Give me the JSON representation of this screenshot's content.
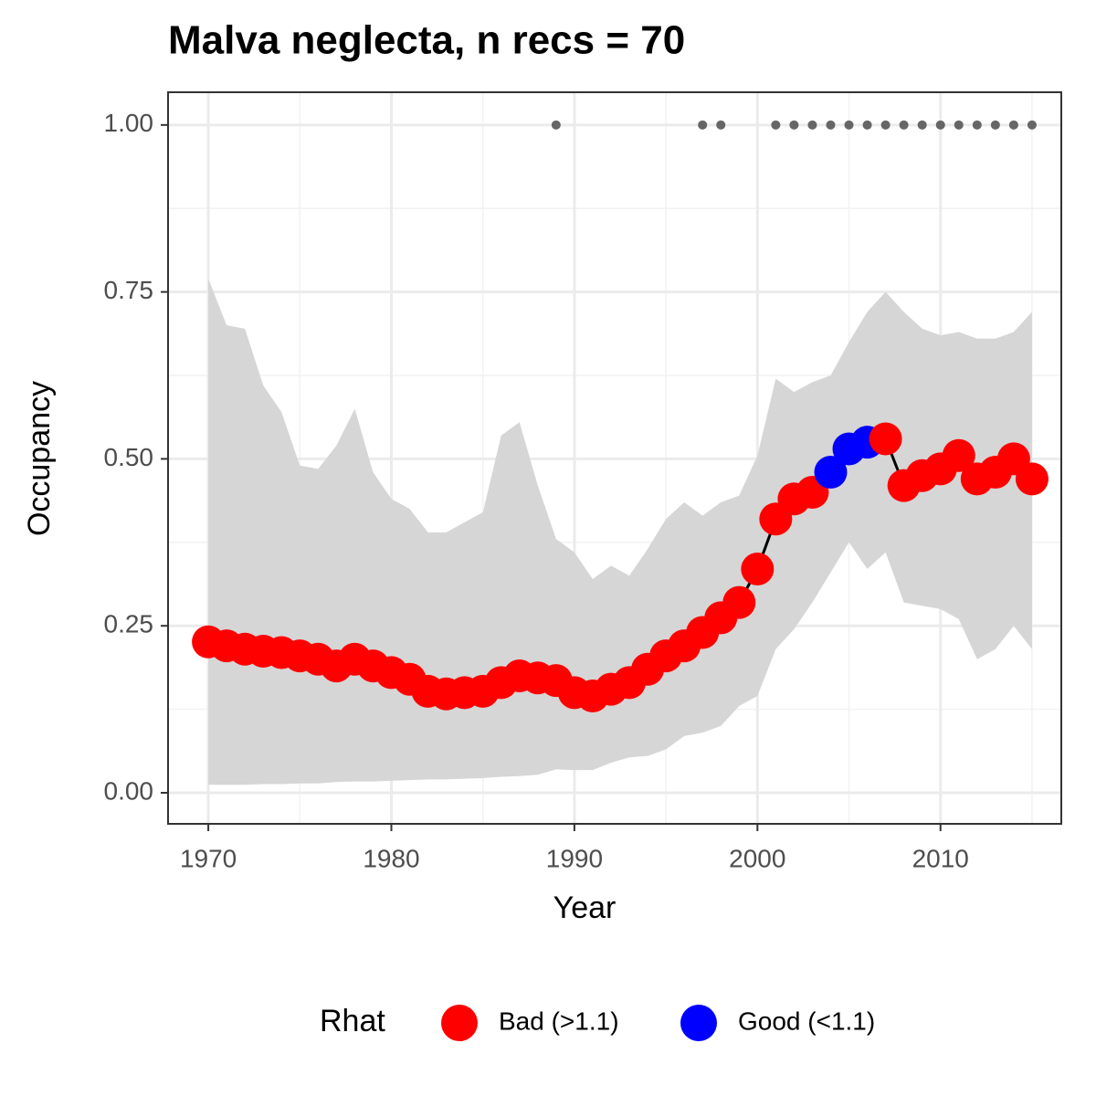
{
  "chart_data": {
    "type": "occupancy",
    "title": "Malva neglecta, n recs = 70",
    "x_label": "Year",
    "y_label": "Occupancy",
    "xlim": [
      1967.8,
      2016.6
    ],
    "ylim": [
      -0.0465,
      1.049
    ],
    "xticks": [
      1970,
      1980,
      1990,
      2000,
      2010
    ],
    "yticks": [
      {
        "value": 0,
        "label": "0.00"
      },
      {
        "value": 0.25,
        "label": "0.25"
      },
      {
        "value": 0.5,
        "label": "0.50"
      },
      {
        "value": 0.75,
        "label": "0.75"
      },
      {
        "value": 1,
        "label": "1.00"
      }
    ],
    "grid": true,
    "x": [
      1970,
      1971,
      1972,
      1973,
      1974,
      1975,
      1976,
      1977,
      1978,
      1979,
      1980,
      1981,
      1982,
      1983,
      1984,
      1985,
      1986,
      1987,
      1988,
      1989,
      1990,
      1991,
      1992,
      1993,
      1994,
      1995,
      1996,
      1997,
      1998,
      1999,
      2000,
      2001,
      2002,
      2003,
      2004,
      2005,
      2006,
      2007,
      2008,
      2009,
      2010,
      2011,
      2012,
      2013,
      2014,
      2015
    ],
    "values": [
      0.226,
      0.22,
      0.215,
      0.212,
      0.21,
      0.205,
      0.2,
      0.19,
      0.2,
      0.19,
      0.18,
      0.17,
      0.152,
      0.148,
      0.15,
      0.152,
      0.165,
      0.175,
      0.172,
      0.168,
      0.15,
      0.145,
      0.155,
      0.165,
      0.185,
      0.205,
      0.22,
      0.24,
      0.262,
      0.285,
      0.335,
      0.41,
      0.44,
      0.45,
      0.48,
      0.515,
      0.525,
      0.53,
      0.46,
      0.475,
      0.485,
      0.505,
      0.47,
      0.48,
      0.5,
      0.47
    ],
    "upper": [
      0.77,
      0.7,
      0.695,
      0.61,
      0.57,
      0.49,
      0.485,
      0.52,
      0.575,
      0.48,
      0.44,
      0.425,
      0.39,
      0.39,
      0.405,
      0.42,
      0.535,
      0.555,
      0.46,
      0.38,
      0.36,
      0.32,
      0.34,
      0.325,
      0.365,
      0.41,
      0.435,
      0.415,
      0.435,
      0.445,
      0.505,
      0.62,
      0.6,
      0.615,
      0.625,
      0.675,
      0.72,
      0.75,
      0.72,
      0.695,
      0.685,
      0.69,
      0.68,
      0.68,
      0.69,
      0.72
    ],
    "lower": [
      0.012,
      0.012,
      0.012,
      0.013,
      0.013,
      0.014,
      0.014,
      0.016,
      0.017,
      0.017,
      0.018,
      0.019,
      0.02,
      0.02,
      0.021,
      0.022,
      0.024,
      0.025,
      0.027,
      0.035,
      0.034,
      0.034,
      0.045,
      0.053,
      0.055,
      0.065,
      0.085,
      0.09,
      0.1,
      0.13,
      0.145,
      0.215,
      0.245,
      0.285,
      0.33,
      0.375,
      0.335,
      0.36,
      0.285,
      0.28,
      0.275,
      0.26,
      0.2,
      0.215,
      0.25,
      0.215
    ],
    "rhat": [
      0,
      0,
      0,
      0,
      0,
      0,
      0,
      0,
      0,
      0,
      0,
      0,
      0,
      0,
      0,
      0,
      0,
      0,
      0,
      0,
      0,
      0,
      0,
      0,
      0,
      0,
      0,
      0,
      0,
      0,
      0,
      0,
      0,
      0,
      1,
      1,
      1,
      0,
      0,
      0,
      0,
      0,
      0,
      0,
      0,
      0
    ],
    "band_color": "#d6d6d6",
    "line_color": "#000000",
    "legend": {
      "title": "Rhat",
      "position": "bottom",
      "entries": [
        {
          "name": "Bad (>1.1)",
          "color": "#ff0000"
        },
        {
          "name": "Good (<1.1)",
          "color": "#0000ff"
        }
      ]
    },
    "records": {
      "color": "#666666",
      "x": [
        1989,
        1997,
        1998,
        2001,
        2002,
        2003,
        2004,
        2005,
        2006,
        2007,
        2008,
        2009,
        2010,
        2011,
        2012,
        2013,
        2014,
        2015
      ],
      "y": [
        1,
        1,
        1,
        1,
        1,
        1,
        1,
        1,
        1,
        1,
        1,
        1,
        1,
        1,
        1,
        1,
        1,
        1
      ]
    }
  }
}
